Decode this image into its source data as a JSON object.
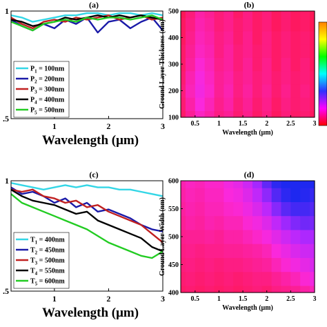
{
  "chart_data": [
    {
      "id": "a",
      "type": "line",
      "title": "(a)",
      "xlabel": "Wavelength (μm)",
      "ylabel": "",
      "xlim": [
        0.2,
        3.0
      ],
      "ylim": [
        0.5,
        1.0
      ],
      "xticks": [
        "1",
        "2",
        "3"
      ],
      "xtick_values": [
        1,
        2,
        3
      ],
      "yticks": [
        "1",
        ".5"
      ],
      "ytick_values": [
        1.0,
        0.5
      ],
      "legend": {
        "placement": "bottom-left"
      },
      "series": [
        {
          "name": "P₁ = 100nm",
          "label_main": "P",
          "label_sub": "1",
          "label_rest": " = 100nm",
          "color": "#33d6e6",
          "x": [
            0.2,
            0.4,
            0.6,
            0.8,
            1.0,
            1.2,
            1.4,
            1.6,
            1.8,
            2.0,
            2.2,
            2.4,
            2.6,
            2.8,
            3.0
          ],
          "y": [
            0.98,
            0.97,
            0.95,
            0.96,
            0.97,
            0.98,
            0.98,
            0.99,
            0.99,
            0.98,
            0.99,
            0.99,
            0.98,
            0.99,
            0.98
          ]
        },
        {
          "name": "P₂ = 200nm",
          "label_main": "P",
          "label_sub": "2",
          "label_rest": " = 200nm",
          "color": "#1a1aa8",
          "x": [
            0.2,
            0.4,
            0.6,
            0.8,
            1.0,
            1.2,
            1.4,
            1.6,
            1.8,
            2.0,
            2.2,
            2.4,
            2.6,
            2.8,
            3.0
          ],
          "y": [
            0.96,
            0.93,
            0.91,
            0.94,
            0.92,
            0.96,
            0.94,
            0.97,
            0.9,
            0.95,
            0.96,
            0.92,
            0.95,
            0.97,
            0.91
          ]
        },
        {
          "name": "P₃ = 300nm",
          "label_main": "P",
          "label_sub": "3",
          "label_rest": " = 300nm",
          "color": "#c02020",
          "x": [
            0.2,
            0.4,
            0.6,
            0.8,
            1.0,
            1.2,
            1.4,
            1.6,
            1.8,
            2.0,
            2.2,
            2.4,
            2.6,
            2.8,
            3.0
          ],
          "y": [
            0.97,
            0.94,
            0.92,
            0.95,
            0.96,
            0.95,
            0.97,
            0.96,
            0.97,
            0.98,
            0.96,
            0.97,
            0.98,
            0.96,
            0.97
          ]
        },
        {
          "name": "P₄ = 400nm",
          "label_main": "P",
          "label_sub": "4",
          "label_rest": " = 400nm",
          "color": "#000000",
          "x": [
            0.2,
            0.4,
            0.6,
            0.8,
            1.0,
            1.2,
            1.4,
            1.6,
            1.8,
            2.0,
            2.2,
            2.4,
            2.6,
            2.8,
            3.0
          ],
          "y": [
            0.96,
            0.95,
            0.93,
            0.94,
            0.95,
            0.97,
            0.96,
            0.97,
            0.98,
            0.97,
            0.98,
            0.97,
            0.98,
            0.97,
            0.96
          ]
        },
        {
          "name": "P₅ = 500nm",
          "label_main": "P",
          "label_sub": "5",
          "label_rest": " = 500nm",
          "color": "#22cc22",
          "x": [
            0.2,
            0.4,
            0.6,
            0.8,
            1.0,
            1.2,
            1.4,
            1.6,
            1.8,
            2.0,
            2.2,
            2.4,
            2.6,
            2.8,
            3.0
          ],
          "y": [
            0.95,
            0.93,
            0.91,
            0.94,
            0.95,
            0.96,
            0.95,
            0.97,
            0.96,
            0.97,
            0.97,
            0.96,
            0.97,
            0.98,
            0.96
          ]
        }
      ]
    },
    {
      "id": "b",
      "type": "heatmap",
      "title": "(b)",
      "xlabel": "Wavelength (μm)",
      "ylabel": "Ground Layer Thickness (nm)",
      "xlim": [
        0.2,
        3.0
      ],
      "ylim": [
        100,
        500
      ],
      "xticks": [
        "0.5",
        "1",
        "1.5",
        "2",
        "2.5",
        "3"
      ],
      "xtick_values": [
        0.5,
        1.0,
        1.5,
        2.0,
        2.5,
        3.0
      ],
      "yticks": [
        "500",
        "400",
        "300",
        "200",
        "100"
      ],
      "ytick_values": [
        500,
        400,
        300,
        200,
        100
      ],
      "colorbar": {
        "placement": "right",
        "colors": [
          "#ff0000",
          "#ff00ff",
          "#3030ff",
          "#00ffff",
          "#00ff00",
          "#ffff00",
          "#ff8000"
        ]
      },
      "x": [
        0.2,
        0.4,
        0.6,
        0.8,
        1.0,
        1.2,
        1.4,
        1.6,
        1.8,
        2.0,
        2.2,
        2.4,
        2.6,
        2.8,
        3.0
      ],
      "y": [
        100,
        150,
        200,
        250,
        300,
        350,
        400,
        450,
        500
      ],
      "z": [
        [
          0.05,
          0.1,
          0.15,
          0.12,
          0.08,
          0.1,
          0.06,
          0.09,
          0.05,
          0.08,
          0.04,
          0.07,
          0.05,
          0.06,
          0.04
        ],
        [
          0.06,
          0.12,
          0.18,
          0.14,
          0.09,
          0.12,
          0.07,
          0.1,
          0.06,
          0.09,
          0.05,
          0.08,
          0.06,
          0.07,
          0.05
        ],
        [
          0.07,
          0.14,
          0.2,
          0.16,
          0.1,
          0.13,
          0.08,
          0.11,
          0.07,
          0.1,
          0.06,
          0.09,
          0.06,
          0.08,
          0.05
        ],
        [
          0.06,
          0.13,
          0.19,
          0.15,
          0.1,
          0.12,
          0.08,
          0.1,
          0.07,
          0.09,
          0.06,
          0.08,
          0.06,
          0.07,
          0.05
        ],
        [
          0.05,
          0.11,
          0.17,
          0.14,
          0.09,
          0.11,
          0.07,
          0.1,
          0.06,
          0.09,
          0.05,
          0.08,
          0.05,
          0.07,
          0.04
        ],
        [
          0.05,
          0.1,
          0.15,
          0.13,
          0.08,
          0.11,
          0.07,
          0.09,
          0.06,
          0.08,
          0.05,
          0.07,
          0.05,
          0.06,
          0.04
        ],
        [
          0.04,
          0.09,
          0.14,
          0.12,
          0.08,
          0.1,
          0.06,
          0.09,
          0.05,
          0.08,
          0.05,
          0.07,
          0.05,
          0.06,
          0.04
        ],
        [
          0.04,
          0.08,
          0.13,
          0.11,
          0.07,
          0.09,
          0.06,
          0.08,
          0.05,
          0.07,
          0.04,
          0.06,
          0.04,
          0.05,
          0.03
        ],
        [
          0.03,
          0.07,
          0.12,
          0.1,
          0.07,
          0.09,
          0.05,
          0.08,
          0.05,
          0.07,
          0.04,
          0.06,
          0.04,
          0.05,
          0.03
        ]
      ]
    },
    {
      "id": "c",
      "type": "line",
      "title": "(c)",
      "xlabel": "Wavelength (μm)",
      "ylabel": "",
      "xlim": [
        0.2,
        3.0
      ],
      "ylim": [
        0.5,
        1.0
      ],
      "xticks": [
        "1",
        "2",
        "3"
      ],
      "xtick_values": [
        1,
        2,
        3
      ],
      "yticks": [
        "1",
        ".5"
      ],
      "ytick_values": [
        1.0,
        0.5
      ],
      "legend": {
        "placement": "bottom-left"
      },
      "series": [
        {
          "name": "T₁ = 400nm",
          "label_main": "T",
          "label_sub": "1",
          "label_rest": " = 400nm",
          "color": "#33d6e6",
          "x": [
            0.2,
            0.4,
            0.6,
            0.8,
            1.0,
            1.2,
            1.4,
            1.6,
            1.8,
            2.0,
            2.2,
            2.4,
            2.6,
            2.8,
            3.0
          ],
          "y": [
            0.99,
            0.98,
            0.97,
            0.96,
            0.97,
            0.98,
            0.97,
            0.98,
            0.97,
            0.97,
            0.96,
            0.96,
            0.95,
            0.94,
            0.93
          ]
        },
        {
          "name": "T₂ = 450nm",
          "label_main": "T",
          "label_sub": "2",
          "label_rest": " = 450nm",
          "color": "#1a1aa8",
          "x": [
            0.2,
            0.4,
            0.6,
            0.8,
            1.0,
            1.2,
            1.4,
            1.6,
            1.8,
            2.0,
            2.2,
            2.4,
            2.6,
            2.8,
            3.0
          ],
          "y": [
            0.97,
            0.94,
            0.95,
            0.93,
            0.9,
            0.92,
            0.88,
            0.9,
            0.86,
            0.87,
            0.85,
            0.83,
            0.8,
            0.78,
            0.77
          ]
        },
        {
          "name": "T₃ = 500nm",
          "label_main": "T",
          "label_sub": "3",
          "label_rest": " = 500nm",
          "color": "#c02020",
          "x": [
            0.2,
            0.4,
            0.6,
            0.8,
            1.0,
            1.2,
            1.4,
            1.6,
            1.8,
            2.0,
            2.2,
            2.4,
            2.6,
            2.8,
            3.0
          ],
          "y": [
            0.96,
            0.95,
            0.96,
            0.93,
            0.92,
            0.9,
            0.91,
            0.88,
            0.89,
            0.86,
            0.84,
            0.82,
            0.8,
            0.76,
            0.72
          ]
        },
        {
          "name": "T₄ = 550nm",
          "label_main": "T",
          "label_sub": "4",
          "label_rest": " = 550nm",
          "color": "#000000",
          "x": [
            0.2,
            0.4,
            0.6,
            0.8,
            1.0,
            1.2,
            1.4,
            1.6,
            1.8,
            2.0,
            2.2,
            2.4,
            2.6,
            2.8,
            3.0
          ],
          "y": [
            0.96,
            0.93,
            0.91,
            0.9,
            0.89,
            0.87,
            0.85,
            0.86,
            0.82,
            0.8,
            0.78,
            0.76,
            0.74,
            0.7,
            0.68
          ]
        },
        {
          "name": "T₅ = 600nm",
          "label_main": "T",
          "label_sub": "5",
          "label_rest": " = 600nm",
          "color": "#22cc22",
          "x": [
            0.2,
            0.4,
            0.6,
            0.8,
            1.0,
            1.2,
            1.4,
            1.6,
            1.8,
            2.0,
            2.2,
            2.4,
            2.6,
            2.8,
            3.0
          ],
          "y": [
            0.94,
            0.9,
            0.88,
            0.86,
            0.84,
            0.82,
            0.8,
            0.78,
            0.75,
            0.72,
            0.7,
            0.68,
            0.66,
            0.65,
            0.68
          ]
        }
      ]
    },
    {
      "id": "d",
      "type": "heatmap",
      "title": "(d)",
      "xlabel": "Wavelength (μm)",
      "ylabel": "Ground Layer Width (nm)",
      "xlim": [
        0.2,
        3.0
      ],
      "ylim": [
        400,
        600
      ],
      "xticks": [
        "0.5",
        "1",
        "1.5",
        "2",
        "2.5",
        "3"
      ],
      "xtick_values": [
        0.5,
        1.0,
        1.5,
        2.0,
        2.5,
        3.0
      ],
      "yticks": [
        "600",
        "550",
        "500",
        "450",
        "400"
      ],
      "ytick_values": [
        600,
        550,
        500,
        450,
        400
      ],
      "x": [
        0.2,
        0.4,
        0.6,
        0.8,
        1.0,
        1.2,
        1.4,
        1.6,
        1.8,
        2.0,
        2.2,
        2.4,
        2.6,
        2.8,
        3.0
      ],
      "y": [
        400,
        425,
        450,
        475,
        500,
        525,
        550,
        575,
        600
      ],
      "z": [
        [
          0.05,
          0.06,
          0.05,
          0.06,
          0.05,
          0.06,
          0.05,
          0.06,
          0.07,
          0.06,
          0.08,
          0.09,
          0.1,
          0.12,
          0.14
        ],
        [
          0.06,
          0.07,
          0.06,
          0.07,
          0.06,
          0.07,
          0.06,
          0.07,
          0.08,
          0.08,
          0.1,
          0.12,
          0.14,
          0.17,
          0.2
        ],
        [
          0.07,
          0.08,
          0.07,
          0.08,
          0.07,
          0.08,
          0.08,
          0.09,
          0.1,
          0.11,
          0.14,
          0.17,
          0.2,
          0.23,
          0.26
        ],
        [
          0.08,
          0.09,
          0.08,
          0.09,
          0.09,
          0.1,
          0.1,
          0.11,
          0.12,
          0.14,
          0.18,
          0.22,
          0.26,
          0.29,
          0.3
        ],
        [
          0.09,
          0.1,
          0.1,
          0.11,
          0.1,
          0.12,
          0.12,
          0.14,
          0.16,
          0.19,
          0.24,
          0.29,
          0.33,
          0.36,
          0.36
        ],
        [
          0.1,
          0.12,
          0.11,
          0.13,
          0.12,
          0.14,
          0.14,
          0.17,
          0.2,
          0.25,
          0.32,
          0.38,
          0.42,
          0.44,
          0.43
        ],
        [
          0.11,
          0.13,
          0.12,
          0.14,
          0.14,
          0.16,
          0.17,
          0.21,
          0.26,
          0.33,
          0.41,
          0.47,
          0.5,
          0.5,
          0.48
        ],
        [
          0.12,
          0.14,
          0.13,
          0.15,
          0.15,
          0.18,
          0.2,
          0.25,
          0.32,
          0.4,
          0.48,
          0.53,
          0.55,
          0.54,
          0.52
        ],
        [
          0.13,
          0.15,
          0.14,
          0.16,
          0.16,
          0.2,
          0.23,
          0.29,
          0.37,
          0.46,
          0.53,
          0.57,
          0.58,
          0.57,
          0.55
        ]
      ]
    }
  ]
}
